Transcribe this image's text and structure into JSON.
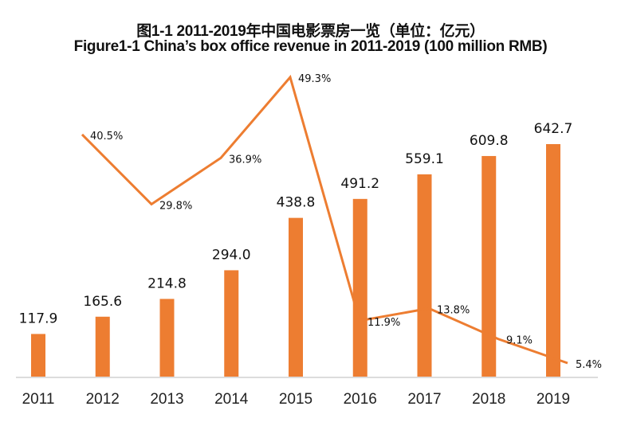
{
  "chart_data": {
    "type": "bar",
    "title": "图1-1 2011-2019年中国电影票房一览（单位：亿元）",
    "subtitle": "Figure1-1 China’s box office revenue in 2011-2019 (100 million RMB)",
    "xlabel": "",
    "ylabel": "",
    "grid": false,
    "legend": "none",
    "categories": [
      "2011",
      "2012",
      "2013",
      "2014",
      "2015",
      "2016",
      "2017",
      "2018",
      "2019"
    ],
    "series": [
      {
        "name": "Box office revenue (100 million RMB)",
        "type": "bar",
        "color": "#ED7D31",
        "values": [
          117.9,
          165.6,
          214.8,
          294.0,
          438.8,
          491.2,
          559.1,
          609.8,
          642.7
        ],
        "labels": [
          "117.9",
          "165.6",
          "214.8",
          "294.0",
          "438.8",
          "491.2",
          "559.1",
          "609.8",
          "642.7"
        ]
      },
      {
        "name": "Growth rate",
        "type": "line",
        "color": "#ED7D31",
        "categories": [
          "2012",
          "2013",
          "2014",
          "2015",
          "2016",
          "2017",
          "2018",
          "2019"
        ],
        "values": [
          40.5,
          29.8,
          36.9,
          49.3,
          11.9,
          13.8,
          9.1,
          5.4
        ],
        "labels": [
          "40.5%",
          "29.8%",
          "36.9%",
          "49.3%",
          "11.9%",
          "13.8%",
          "9.1%",
          "5.4%"
        ]
      }
    ],
    "ylim": [
      0,
      700
    ]
  }
}
